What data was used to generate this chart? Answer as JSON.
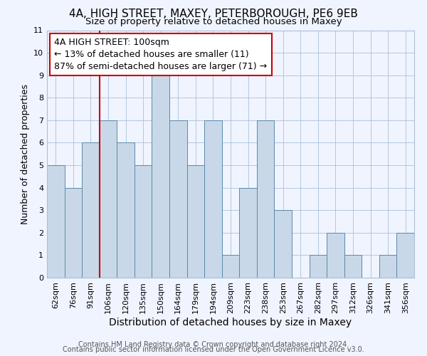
{
  "title": "4A, HIGH STREET, MAXEY, PETERBOROUGH, PE6 9EB",
  "subtitle": "Size of property relative to detached houses in Maxey",
  "xlabel": "Distribution of detached houses by size in Maxey",
  "ylabel": "Number of detached properties",
  "bin_labels": [
    "62sqm",
    "76sqm",
    "91sqm",
    "106sqm",
    "120sqm",
    "135sqm",
    "150sqm",
    "164sqm",
    "179sqm",
    "194sqm",
    "209sqm",
    "223sqm",
    "238sqm",
    "253sqm",
    "267sqm",
    "282sqm",
    "297sqm",
    "312sqm",
    "326sqm",
    "341sqm",
    "356sqm"
  ],
  "values": [
    5,
    4,
    6,
    7,
    6,
    5,
    9,
    7,
    5,
    7,
    1,
    4,
    7,
    3,
    0,
    1,
    2,
    1,
    0,
    1,
    2
  ],
  "bar_color": "#c8d8e8",
  "bar_edge_color": "#5a8aaa",
  "vline_x_index": 2,
  "vline_color": "#cc0000",
  "annotation_text": "4A HIGH STREET: 100sqm\n← 13% of detached houses are smaller (11)\n87% of semi-detached houses are larger (71) →",
  "annotation_box_color": "white",
  "annotation_box_edge_color": "#cc0000",
  "ylim": [
    0,
    11
  ],
  "yticks": [
    0,
    1,
    2,
    3,
    4,
    5,
    6,
    7,
    8,
    9,
    10,
    11
  ],
  "footer1": "Contains HM Land Registry data © Crown copyright and database right 2024.",
  "footer2": "Contains public sector information licensed under the Open Government Licence v3.0.",
  "bg_color": "#f0f4ff",
  "grid_color": "#aac0d8",
  "title_fontsize": 11,
  "subtitle_fontsize": 9.5,
  "xlabel_fontsize": 10,
  "ylabel_fontsize": 9,
  "tick_fontsize": 8,
  "annotation_fontsize": 9,
  "footer_fontsize": 7
}
